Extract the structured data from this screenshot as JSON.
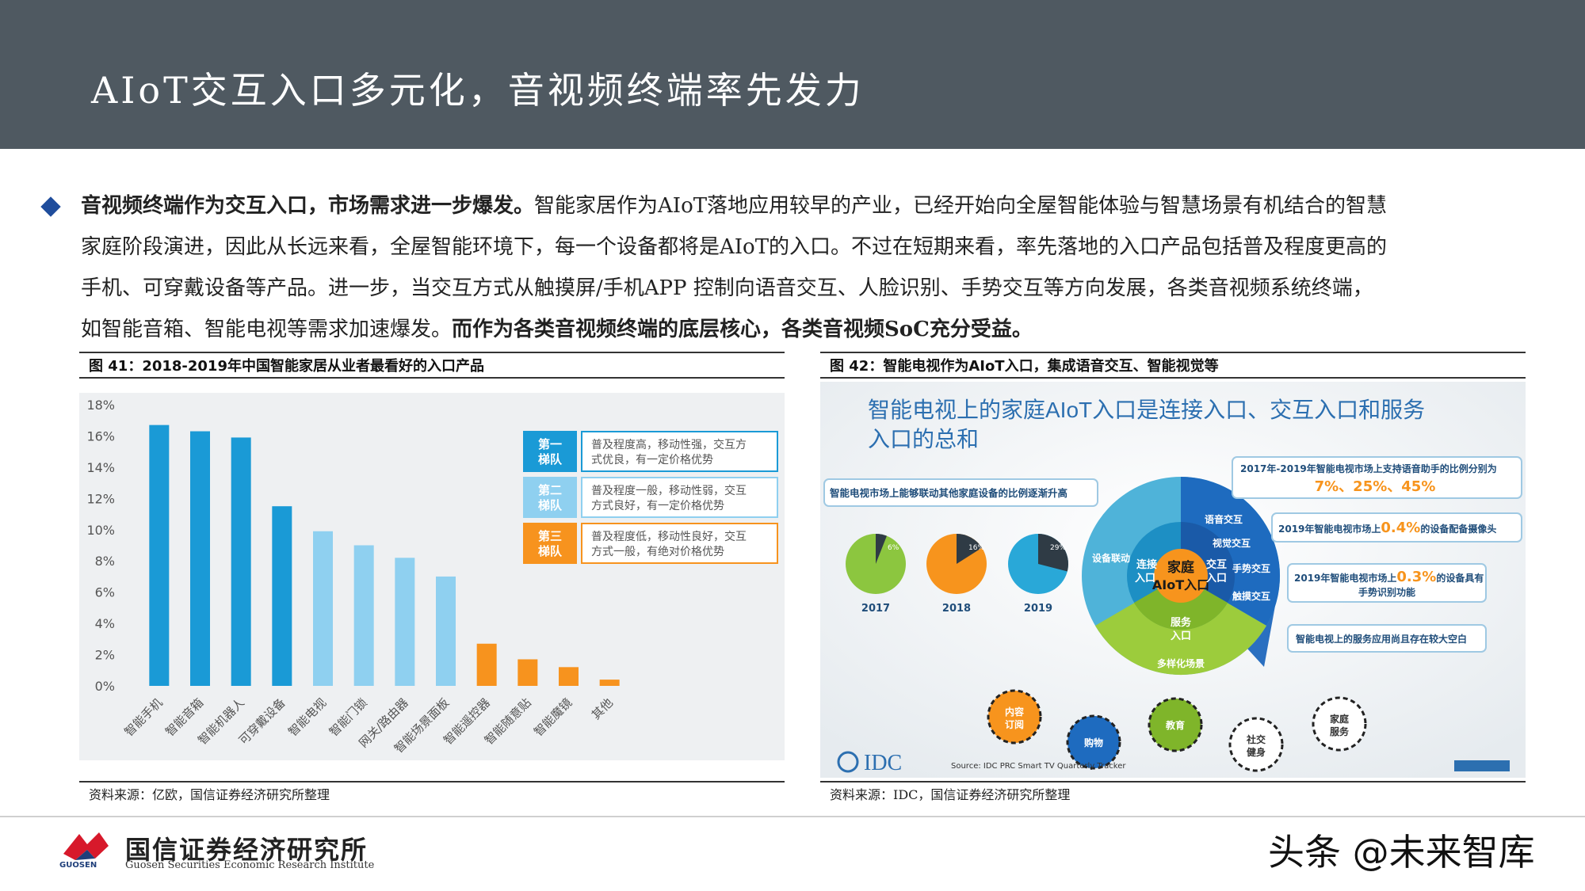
{
  "header": {
    "title": "AIoT交互入口多元化，音视频终端率先发力"
  },
  "intro": {
    "line1_bold": "音视频终端作为交互入口，市场需求进一步爆发。",
    "line1_rest": "智能家居作为AIoT落地应用较早的产业，已经开始向全屋智能体验与智慧场景有机结合的智慧",
    "line2": "家庭阶段演进，因此从长远来看，全屋智能环境下，每一个设备都将是AIoT的入口。不过在短期来看，率先落地的入口产品包括普及程度更高的",
    "line3": "手机、可穿戴设备等产品。进一步，当交互方式从触摸屏/手机APP 控制向语音交互、人脸识别、手势交互等方向发展，各类音视频系统终端，",
    "line4_rest": "如智能音箱、智能电视等需求加速爆发。",
    "line4_bold": "而作为各类音视频终端的底层核心，各类音视频SoC充分受益。"
  },
  "figure41": {
    "title": "图 41：2018-2019年中国智能家居从业者最看好的入口产品",
    "source": "资料来源：亿欧，国信证券经济研究所整理"
  },
  "figure42": {
    "title": "图 42：智能电视作为AIoT入口，集成语音交互、智能视觉等",
    "source": "资料来源：IDC，国信证券经济研究所整理",
    "headline_1": "智能电视上的家庭AIoT入口是连接入口、交互入口和服务",
    "headline_2": "入口的总和",
    "left_box": "智能电视市场上能够联动其他家庭设备的比例逐渐升高",
    "pies": [
      {
        "year": "2017",
        "pct_label": "6%",
        "pct": 6,
        "color": "#8cc63f"
      },
      {
        "year": "2018",
        "pct_label": "16%",
        "pct": 16,
        "color": "#f7941d"
      },
      {
        "year": "2019",
        "pct_label": "29%",
        "pct": 29,
        "color": "#29a8d8"
      }
    ],
    "right_box1_line1": "2017年-2019年智能电视市场上支持语音助手的比例分别为",
    "right_box1_values": "7%、25%、45%",
    "right_box2_pre": "2019年智能电视市场上",
    "right_box2_val": "0.4%",
    "right_box2_post": "的设备配备摄像头",
    "right_box3_pre": "2019年智能电视市场上",
    "right_box3_val": "0.3%",
    "right_box3_post": "的设备具有",
    "right_box3_line2": "手势识别功能",
    "right_box4": "智能电视上的服务应用尚且存在较大空白",
    "circle_labels": {
      "voice": "语音交互",
      "visual": "视觉交互",
      "gesture": "手势交互",
      "touch": "触摸交互",
      "link": "设备联动",
      "connect": "连接\n入口",
      "interact": "交互\n入口",
      "service": "服务\n入口",
      "center_1": "家庭",
      "center_2": "AIoT入口",
      "scene": "多样化场景"
    },
    "services": [
      "内容订阅",
      "购物",
      "教育",
      "社交健身",
      "家庭服务"
    ],
    "idc_logo": "IDC",
    "idc_source": "Source:  IDC PRC Smart TV Quarterly Tracker"
  },
  "chart_data": {
    "type": "bar",
    "categories": [
      "智能手机",
      "智能音箱",
      "智能机器人",
      "可穿戴设备",
      "智能电视",
      "智能门锁",
      "网关/路由器",
      "智能场景面板",
      "智能遥控器",
      "智能随意贴",
      "智能魔镜",
      "其他"
    ],
    "values": [
      16.7,
      16.3,
      15.9,
      11.5,
      9.9,
      9.0,
      8.2,
      7.0,
      2.7,
      1.7,
      1.2,
      0.4
    ],
    "tiers": [
      1,
      1,
      1,
      1,
      2,
      2,
      2,
      2,
      3,
      3,
      3,
      3
    ],
    "y_ticks": [
      "0%",
      "2%",
      "4%",
      "6%",
      "8%",
      "10%",
      "12%",
      "14%",
      "16%",
      "18%"
    ],
    "ylim": [
      0,
      18
    ],
    "colors": {
      "tier1": "#1a9ad6",
      "tier2": "#8fd0f0",
      "tier3": "#f7931e"
    },
    "legend": [
      {
        "tag": "第一\n梯队",
        "desc_1": "普及程度高，移动性强，交互方",
        "desc_2": "式优良，有一定价格优势",
        "color": "#1a9ad6"
      },
      {
        "tag": "第二\n梯队",
        "desc_1": "普及程度一般，移动性弱，交互",
        "desc_2": "方式良好，有一定价格优势",
        "color": "#8fd0f0"
      },
      {
        "tag": "第三\n梯队",
        "desc_1": "普及程度低，移动性良好，交互",
        "desc_2": "方式一般，有绝对价格优势",
        "color": "#f7931e"
      }
    ],
    "grid": false,
    "legend_position": "top-right"
  },
  "footer": {
    "company": "国信证券经济研究所",
    "company_en": "Guosen Securities Economic Research Institute",
    "logo_small": "GUOSEN",
    "watermark": "头条 @未来智库"
  }
}
